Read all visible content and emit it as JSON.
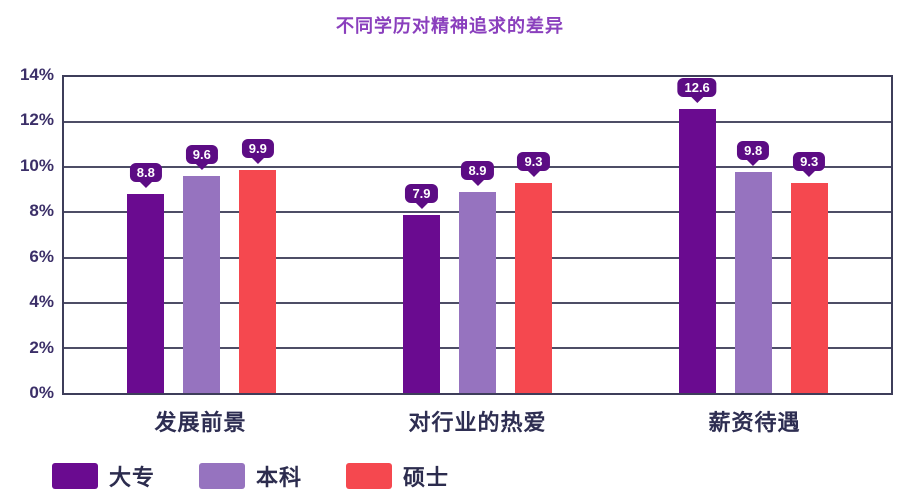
{
  "title": "不同学历对精神追求的差异",
  "chart_data": {
    "type": "bar",
    "title": "不同学历对精神追求的差异",
    "categories": [
      "发展前景",
      "对行业的热爱",
      "薪资待遇"
    ],
    "series": [
      {
        "name": "大专",
        "color": "#6a0b90",
        "values": [
          8.8,
          7.9,
          12.6
        ]
      },
      {
        "name": "本科",
        "color": "#9673bf",
        "values": [
          9.6,
          8.9,
          9.8
        ]
      },
      {
        "name": "硕士",
        "color": "#f5484f",
        "values": [
          9.9,
          9.3,
          9.3
        ]
      }
    ],
    "xlabel": "",
    "ylabel": "",
    "ylim": [
      0,
      14
    ],
    "y_ticks": [
      "14%",
      "12%",
      "10%",
      "8%",
      "6%",
      "4%",
      "2%",
      "0%"
    ],
    "grid": true,
    "data_labels": true,
    "legend_position": "bottom-left"
  },
  "colors": {
    "title": "#8a3fbd",
    "bubble": "#5c0c84",
    "gridline": "#4d4d66",
    "plot_border": "#3e3e5a",
    "tick_text": "#3b2f68",
    "category_text": "#2e2e52",
    "legend_text": "#2c2c4e",
    "background": "#ffffff"
  }
}
